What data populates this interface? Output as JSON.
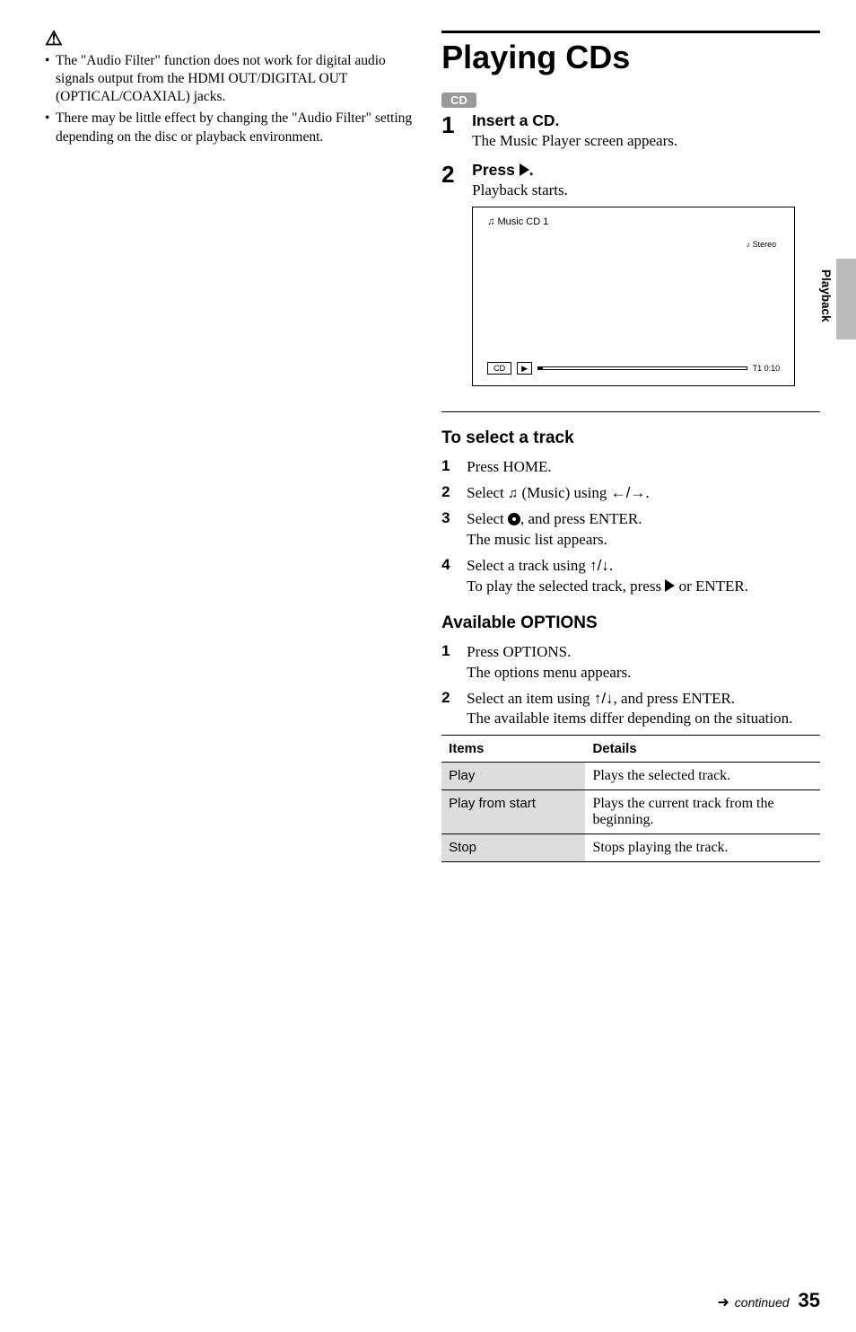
{
  "side_tab": "Playback",
  "note_icon": "⚠",
  "left_notes": [
    "The \"Audio Filter\" function does not work for digital audio signals output from the HDMI OUT/DIGITAL OUT (OPTICAL/COAXIAL) jacks.",
    "There may be little effect by changing the \"Audio Filter\" setting depending on the disc or playback environment."
  ],
  "title": "Playing CDs",
  "cd_badge": "CD",
  "main_steps": [
    {
      "num": "1",
      "head": "Insert a CD.",
      "text": "The Music Player screen appears."
    },
    {
      "num": "2",
      "head": "Press ▶.",
      "text": "Playback starts."
    }
  ],
  "player": {
    "top_label": "♫ Music CD   1",
    "stereo": "♪ Stereo",
    "cd": "CD",
    "play": "▶",
    "time": "T1   0:10"
  },
  "select_track": {
    "heading": "To select a track",
    "steps": [
      {
        "num": "1",
        "html": "Press HOME."
      },
      {
        "num": "2",
        "html": "Select <span class='note-glyph'></span> (Music) using <span class='glyph arrow-lr'></span>."
      },
      {
        "num": "3",
        "html": "Select <span class='disc-glyph'></span>, and press ENTER.<br>The music list appears."
      },
      {
        "num": "4",
        "html": "Select a track using <span class='glyph arrow-ud'></span>.<br>To play the selected track, press <span class='play-tri'></span> or ENTER."
      }
    ]
  },
  "options": {
    "heading": "Available OPTIONS",
    "steps": [
      {
        "num": "1",
        "html": "Press OPTIONS.<br>The options menu appears."
      },
      {
        "num": "2",
        "html": "Select an item using <span class='glyph arrow-ud'></span>, and press ENTER.<br>The available items differ depending on the situation."
      }
    ],
    "table": {
      "head_items": "Items",
      "head_details": "Details",
      "rows": [
        {
          "item": "Play",
          "detail": "Plays the selected track."
        },
        {
          "item": "Play from start",
          "detail": "Plays the current track from the beginning."
        },
        {
          "item": "Stop",
          "detail": "Stops playing the track."
        }
      ]
    }
  },
  "footer": {
    "arrow": "➜",
    "text": "continued",
    "page": "35"
  }
}
